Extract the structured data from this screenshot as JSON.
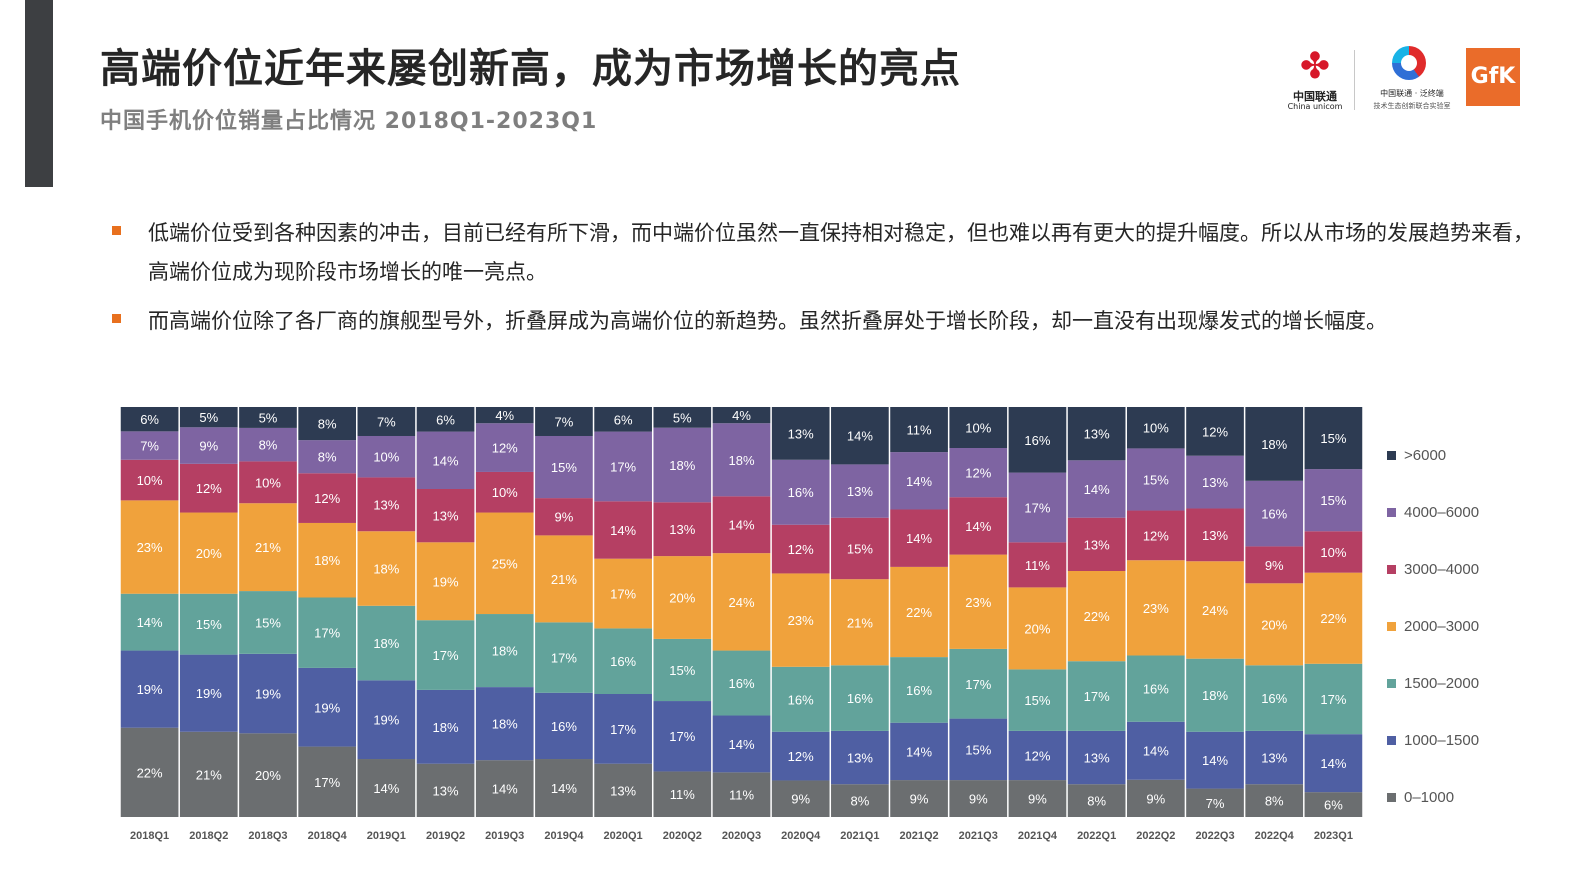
{
  "header": {
    "title": "高端价位近年来屡创新高，成为市场增长的亮点",
    "subtitle": "中国手机价位销量占比情况 2018Q1-2023Q1"
  },
  "logos": {
    "unicom_cn": "中国联通",
    "unicom_en": "China unicom",
    "lab_line1": "中国联通 · 泛终端",
    "lab_line2": "技术生态创新联合实验室",
    "gfk": "GfK"
  },
  "bullets": [
    "低端价位受到各种因素的冲击，目前已经有所下滑，而中端价位虽然一直保持相对稳定，但也难以再有更大的提升幅度。所以从市场的发展趋势来看，高端价位成为现阶段市场增长的唯一亮点。",
    "而高端价位除了各厂商的旗舰型号外，折叠屏成为高端价位的新趋势。虽然折叠屏处于增长阶段，却一直没有出现爆发式的增长幅度。"
  ],
  "colors": {
    "accent_bar": "#3d3f42",
    "bullet_marker": "#e8701e"
  },
  "chart_data": {
    "type": "bar",
    "stacked": true,
    "normalized": true,
    "categories": [
      "2018Q1",
      "2018Q2",
      "2018Q3",
      "2018Q4",
      "2019Q1",
      "2019Q2",
      "2019Q3",
      "2019Q4",
      "2020Q1",
      "2020Q2",
      "2020Q3",
      "2020Q4",
      "2021Q1",
      "2021Q2",
      "2021Q3",
      "2021Q4",
      "2022Q1",
      "2022Q2",
      "2022Q3",
      "2022Q4",
      "2023Q1"
    ],
    "series": [
      {
        "name": "0–1000",
        "color": "#6b6e70",
        "values": [
          22,
          21,
          20,
          17,
          14,
          13,
          14,
          14,
          13,
          11,
          11,
          9,
          8,
          9,
          9,
          9,
          8,
          9,
          7,
          8,
          6
        ]
      },
      {
        "name": "1000–1500",
        "color": "#4f5fa3",
        "values": [
          19,
          19,
          19,
          19,
          19,
          18,
          18,
          16,
          17,
          17,
          14,
          12,
          13,
          14,
          15,
          12,
          13,
          14,
          14,
          13,
          14
        ]
      },
      {
        "name": "1500–2000",
        "color": "#62a39b",
        "values": [
          14,
          15,
          15,
          17,
          18,
          17,
          18,
          17,
          16,
          15,
          16,
          16,
          16,
          16,
          17,
          15,
          17,
          16,
          18,
          16,
          17
        ]
      },
      {
        "name": "2000–3000",
        "color": "#f0a23c",
        "values": [
          23,
          20,
          21,
          18,
          18,
          19,
          25,
          21,
          17,
          20,
          24,
          23,
          21,
          22,
          23,
          20,
          22,
          23,
          24,
          20,
          22
        ]
      },
      {
        "name": "3000–4000",
        "color": "#b53f63",
        "values": [
          10,
          12,
          10,
          12,
          13,
          13,
          10,
          9,
          14,
          13,
          14,
          12,
          15,
          14,
          14,
          11,
          13,
          12,
          13,
          9,
          10
        ]
      },
      {
        "name": "4000–6000",
        "color": "#7e64a2",
        "values": [
          7,
          9,
          8,
          8,
          10,
          14,
          12,
          15,
          17,
          18,
          18,
          16,
          13,
          14,
          12,
          17,
          14,
          15,
          13,
          16,
          15
        ]
      },
      {
        "name": ">6000",
        "color": "#2d3b52",
        "values": [
          6,
          5,
          5,
          8,
          7,
          6,
          4,
          7,
          6,
          5,
          4,
          13,
          14,
          11,
          10,
          16,
          13,
          10,
          12,
          18,
          15
        ]
      }
    ],
    "legend_position": "right",
    "legend_order": [
      ">6000",
      "4000–6000",
      "3000–4000",
      "2000–3000",
      "1500–2000",
      "1000–1500",
      "0–1000"
    ],
    "value_suffix": "%"
  }
}
